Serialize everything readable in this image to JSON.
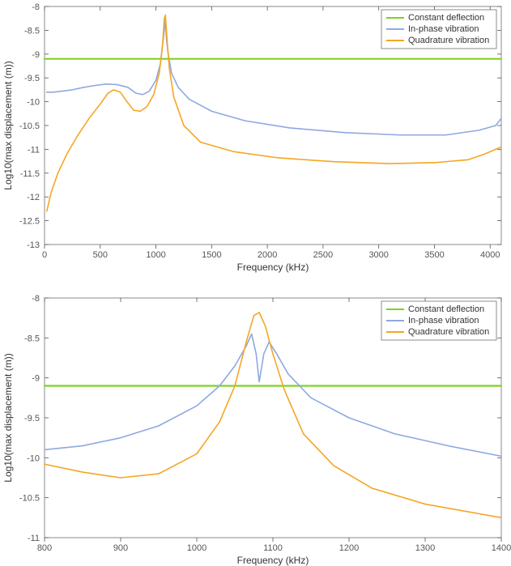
{
  "top_chart": {
    "type": "line",
    "xlabel": "Frequency (kHz)",
    "ylabel": "Log10(max displacement (m))",
    "xlim": [
      0,
      4100
    ],
    "ylim": [
      -13,
      -8
    ],
    "xticks": [
      0,
      500,
      1000,
      1500,
      2000,
      2500,
      3000,
      3500,
      4000
    ],
    "yticks": [
      -13,
      -12.5,
      -12,
      -11.5,
      -11,
      -10.5,
      -10,
      -9.5,
      -9,
      -8.5,
      -8
    ],
    "background_color": "#ffffff",
    "border_color": "#888888",
    "tick_color": "#555555",
    "tick_fontsize": 11,
    "label_fontsize": 12,
    "line_width": 1.6,
    "legend": {
      "items": [
        {
          "label": "Constant deflection",
          "color": "#7ed321"
        },
        {
          "label": "In-phase vibration",
          "color": "#8fa8e0"
        },
        {
          "label": "Quadrature vibration",
          "color": "#f5a623"
        }
      ],
      "position": "top-right"
    },
    "series": [
      {
        "name": "Constant deflection",
        "color": "#7ed321",
        "width": 2.2,
        "points": [
          [
            0,
            -9.1
          ],
          [
            4100,
            -9.1
          ]
        ]
      },
      {
        "name": "In-phase vibration",
        "color": "#8fa8e0",
        "width": 1.6,
        "points": [
          [
            20,
            -9.8
          ],
          [
            80,
            -9.8
          ],
          [
            150,
            -9.78
          ],
          [
            250,
            -9.75
          ],
          [
            350,
            -9.7
          ],
          [
            450,
            -9.66
          ],
          [
            550,
            -9.63
          ],
          [
            650,
            -9.64
          ],
          [
            750,
            -9.7
          ],
          [
            820,
            -9.82
          ],
          [
            880,
            -9.85
          ],
          [
            940,
            -9.78
          ],
          [
            1000,
            -9.55
          ],
          [
            1040,
            -9.2
          ],
          [
            1060,
            -8.8
          ],
          [
            1075,
            -8.5
          ],
          [
            1085,
            -8.3
          ],
          [
            1095,
            -8.7
          ],
          [
            1110,
            -9.0
          ],
          [
            1140,
            -9.4
          ],
          [
            1200,
            -9.7
          ],
          [
            1300,
            -9.95
          ],
          [
            1500,
            -10.2
          ],
          [
            1800,
            -10.4
          ],
          [
            2200,
            -10.55
          ],
          [
            2700,
            -10.65
          ],
          [
            3200,
            -10.7
          ],
          [
            3600,
            -10.7
          ],
          [
            3900,
            -10.6
          ],
          [
            4050,
            -10.5
          ],
          [
            4100,
            -10.35
          ]
        ]
      },
      {
        "name": "Quadrature vibration",
        "color": "#f5a623",
        "width": 1.6,
        "points": [
          [
            20,
            -12.3
          ],
          [
            60,
            -11.9
          ],
          [
            120,
            -11.5
          ],
          [
            200,
            -11.1
          ],
          [
            300,
            -10.7
          ],
          [
            400,
            -10.35
          ],
          [
            500,
            -10.05
          ],
          [
            570,
            -9.82
          ],
          [
            620,
            -9.75
          ],
          [
            680,
            -9.8
          ],
          [
            740,
            -10.0
          ],
          [
            800,
            -10.18
          ],
          [
            860,
            -10.2
          ],
          [
            920,
            -10.1
          ],
          [
            980,
            -9.85
          ],
          [
            1030,
            -9.4
          ],
          [
            1060,
            -8.8
          ],
          [
            1075,
            -8.25
          ],
          [
            1085,
            -8.18
          ],
          [
            1100,
            -8.7
          ],
          [
            1120,
            -9.3
          ],
          [
            1160,
            -9.9
          ],
          [
            1250,
            -10.5
          ],
          [
            1400,
            -10.85
          ],
          [
            1700,
            -11.05
          ],
          [
            2100,
            -11.18
          ],
          [
            2600,
            -11.26
          ],
          [
            3100,
            -11.3
          ],
          [
            3500,
            -11.28
          ],
          [
            3800,
            -11.22
          ],
          [
            3950,
            -11.1
          ],
          [
            4050,
            -11.0
          ],
          [
            4100,
            -10.95
          ]
        ]
      }
    ]
  },
  "bottom_chart": {
    "type": "line",
    "xlabel": "Frequency (kHz)",
    "ylabel": "Log10(max displacement (m))",
    "xlabel_cut": true,
    "xlim": [
      800,
      1400
    ],
    "ylim": [
      -11,
      -8
    ],
    "xticks": [
      800,
      900,
      1000,
      1100,
      1200,
      1300,
      1400
    ],
    "yticks": [
      -11,
      -10.5,
      -10,
      -9.5,
      -9,
      -8.5,
      -8
    ],
    "background_color": "#ffffff",
    "border_color": "#888888",
    "tick_color": "#555555",
    "tick_fontsize": 11,
    "label_fontsize": 12,
    "line_width": 1.6,
    "legend": {
      "items": [
        {
          "label": "Constant deflection",
          "color": "#7ed321"
        },
        {
          "label": "In-phase vibration",
          "color": "#8fa8e0"
        },
        {
          "label": "Quadrature vibration",
          "color": "#f5a623"
        }
      ],
      "position": "top-right"
    },
    "series": [
      {
        "name": "Constant deflection",
        "color": "#7ed321",
        "width": 2.2,
        "points": [
          [
            800,
            -9.1
          ],
          [
            1400,
            -9.1
          ]
        ]
      },
      {
        "name": "In-phase vibration",
        "color": "#8fa8e0",
        "width": 1.6,
        "points": [
          [
            800,
            -9.9
          ],
          [
            850,
            -9.85
          ],
          [
            900,
            -9.75
          ],
          [
            950,
            -9.6
          ],
          [
            1000,
            -9.35
          ],
          [
            1030,
            -9.1
          ],
          [
            1050,
            -8.85
          ],
          [
            1065,
            -8.6
          ],
          [
            1072,
            -8.45
          ],
          [
            1078,
            -8.7
          ],
          [
            1082,
            -9.05
          ],
          [
            1088,
            -8.7
          ],
          [
            1095,
            -8.55
          ],
          [
            1105,
            -8.7
          ],
          [
            1120,
            -8.95
          ],
          [
            1150,
            -9.25
          ],
          [
            1200,
            -9.5
          ],
          [
            1260,
            -9.7
          ],
          [
            1330,
            -9.85
          ],
          [
            1400,
            -9.98
          ]
        ]
      },
      {
        "name": "Quadrature vibration",
        "color": "#f5a623",
        "width": 1.6,
        "points": [
          [
            800,
            -10.08
          ],
          [
            850,
            -10.18
          ],
          [
            900,
            -10.25
          ],
          [
            950,
            -10.2
          ],
          [
            1000,
            -9.95
          ],
          [
            1030,
            -9.55
          ],
          [
            1050,
            -9.1
          ],
          [
            1065,
            -8.55
          ],
          [
            1075,
            -8.22
          ],
          [
            1082,
            -8.18
          ],
          [
            1090,
            -8.35
          ],
          [
            1100,
            -8.7
          ],
          [
            1115,
            -9.15
          ],
          [
            1140,
            -9.7
          ],
          [
            1180,
            -10.1
          ],
          [
            1230,
            -10.38
          ],
          [
            1300,
            -10.58
          ],
          [
            1400,
            -10.75
          ]
        ]
      }
    ]
  }
}
